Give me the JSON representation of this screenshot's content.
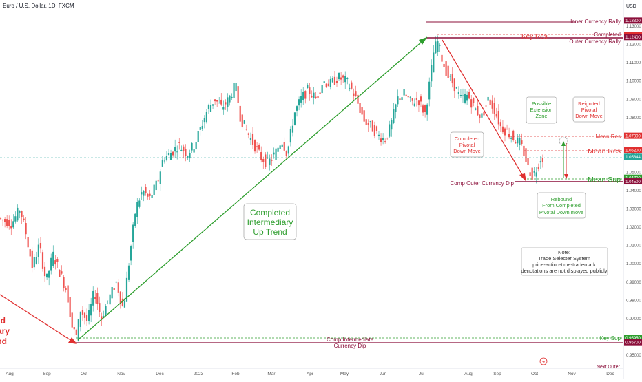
{
  "header": {
    "symbol_title": "Euro / U.S. Dollar, 1D, FXCM",
    "currency": "USD"
  },
  "colors": {
    "bull": "#26a69a",
    "bear": "#ef5350",
    "green_line": "#2e9e2e",
    "red_line": "#e03030",
    "maroon": "#8b0f3a",
    "dotted_grey": "#999999"
  },
  "chart_data": {
    "type": "candlestick",
    "title": "Euro / U.S. Dollar, 1D, FXCM",
    "ylim": [
      0.945,
      1.137
    ],
    "y_ticks": [
      "1.13000",
      "1.12000",
      "1.11000",
      "1.10000",
      "1.09000",
      "1.08000",
      "1.07000",
      "1.06000",
      "1.05000",
      "1.04000",
      "1.03000",
      "1.02000",
      "1.01000",
      "1.00000",
      "0.99000",
      "0.98000",
      "0.97000",
      "0.96000",
      "0.95000"
    ],
    "x_ticks": [
      "Aug",
      "Sep",
      "Oct",
      "Nov",
      "Dec",
      "2023",
      "Feb",
      "Mar",
      "Apr",
      "May",
      "Jun",
      "Jul",
      "Aug",
      "Sep",
      "Oct",
      "Nov",
      "Dec"
    ],
    "current_price": "1.05844",
    "price_labels": [
      {
        "text": "1.13300",
        "color": "#8b0f3a"
      },
      {
        "text": "1.12500",
        "color": "#e03030"
      },
      {
        "text": "1.12400",
        "color": "#8b0f3a"
      },
      {
        "text": "1.07000",
        "color": "#e03030"
      },
      {
        "text": "1.06200",
        "color": "#e03030"
      },
      {
        "text": "1.05844",
        "color": "#26a69a"
      },
      {
        "text": "1.04700",
        "color": "#2e9e2e"
      },
      {
        "text": "1.04500",
        "color": "#8b0f3a"
      },
      {
        "text": "0.95950",
        "color": "#2e9e2e"
      },
      {
        "text": "0.95700",
        "color": "#8b0f3a"
      }
    ],
    "levels": [
      {
        "name": "Inner Currency Rally",
        "value": 1.133
      },
      {
        "name": "Completed",
        "value": 1.125
      },
      {
        "name": "Key Res",
        "value": 1.124
      },
      {
        "name": "Outer Currency Rally",
        "value": 1.124
      },
      {
        "name": "Mean Res",
        "value": 1.07
      },
      {
        "name": "Mean Res",
        "value": 1.062
      },
      {
        "name": "Mean Sup",
        "value": 1.047
      },
      {
        "name": "Comp Outer Currency Dip",
        "value": 1.045
      },
      {
        "name": "Key Sup",
        "value": 0.9595
      },
      {
        "name": "Comp Intermediate Currency Dip",
        "value": 0.957
      }
    ]
  },
  "annotations": {
    "inner_currency_rally": "Inner Currency Rally",
    "completed": "Completed",
    "outer_currency_rally": "Outer Currency Rally",
    "key_res": "Key Res",
    "mean_res_small": "Mean Res",
    "mean_res_big": "Mean Res",
    "mean_sup": "Mean Sup",
    "comp_outer_dip": "Comp Outer Currency Dip",
    "key_sup": "Key Sup",
    "comp_intermediate_1": "Comp Intermediate",
    "comp_intermediate_2": "Currency Dip",
    "next_outer": "Next Outer",
    "left_partial_1": "d",
    "left_partial_2": "ary",
    "left_partial_3": "nd",
    "up_trend_1": "Completed",
    "up_trend_2": "Intermediary",
    "up_trend_3": "Up Trend",
    "pivot_1": "Completed",
    "pivot_2": "Pivotal",
    "pivot_3": "Down Move",
    "extension_1": "Possible",
    "extension_2": "Extension",
    "extension_3": "Zone",
    "reignited_1": "Reignited",
    "reignited_2": "Pivotal",
    "reignited_3": "Down Move",
    "rebound_1": "Rebound",
    "rebound_2": "From Completed",
    "rebound_3": "Pivotal Down move",
    "note_1": "Note:",
    "note_2": "Trade Selecter System",
    "note_3": "price-action-time-trademark",
    "note_4": "denotations are not displayed publicly"
  }
}
